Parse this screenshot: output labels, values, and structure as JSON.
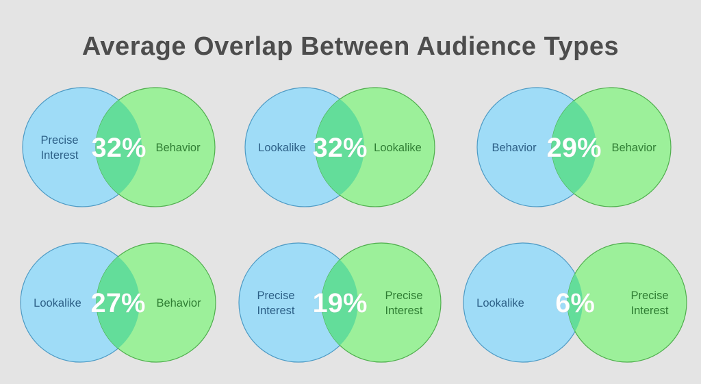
{
  "title": "Average Overlap Between Audience Types",
  "colors": {
    "background": "#e4e4e4",
    "left_circle": "#9fdcf7",
    "right_circle": "#9cf09a",
    "overlap": "#63dd9a",
    "left_text": "#2c5f86",
    "right_text": "#2f7d33",
    "title_text": "#4d4d4d"
  },
  "diagrams": [
    {
      "left": [
        "Precise",
        "Interest"
      ],
      "right": [
        "Behavior"
      ],
      "overlap": "32%",
      "overlap_value": 0.32
    },
    {
      "left": [
        "Lookalike"
      ],
      "right": [
        "Lookalike"
      ],
      "overlap": "32%",
      "overlap_value": 0.32
    },
    {
      "left": [
        "Behavior"
      ],
      "right": [
        "Behavior"
      ],
      "overlap": "29%",
      "overlap_value": 0.29
    },
    {
      "left": [
        "Lookalike"
      ],
      "right": [
        "Behavior"
      ],
      "overlap": "27%",
      "overlap_value": 0.27
    },
    {
      "left": [
        "Precise",
        "Interest"
      ],
      "right": [
        "Precise",
        "Interest"
      ],
      "overlap": "19%",
      "overlap_value": 0.19
    },
    {
      "left": [
        "Lookalike"
      ],
      "right": [
        "Precise",
        "Interest"
      ],
      "overlap": "6%",
      "overlap_value": 0.06
    }
  ]
}
